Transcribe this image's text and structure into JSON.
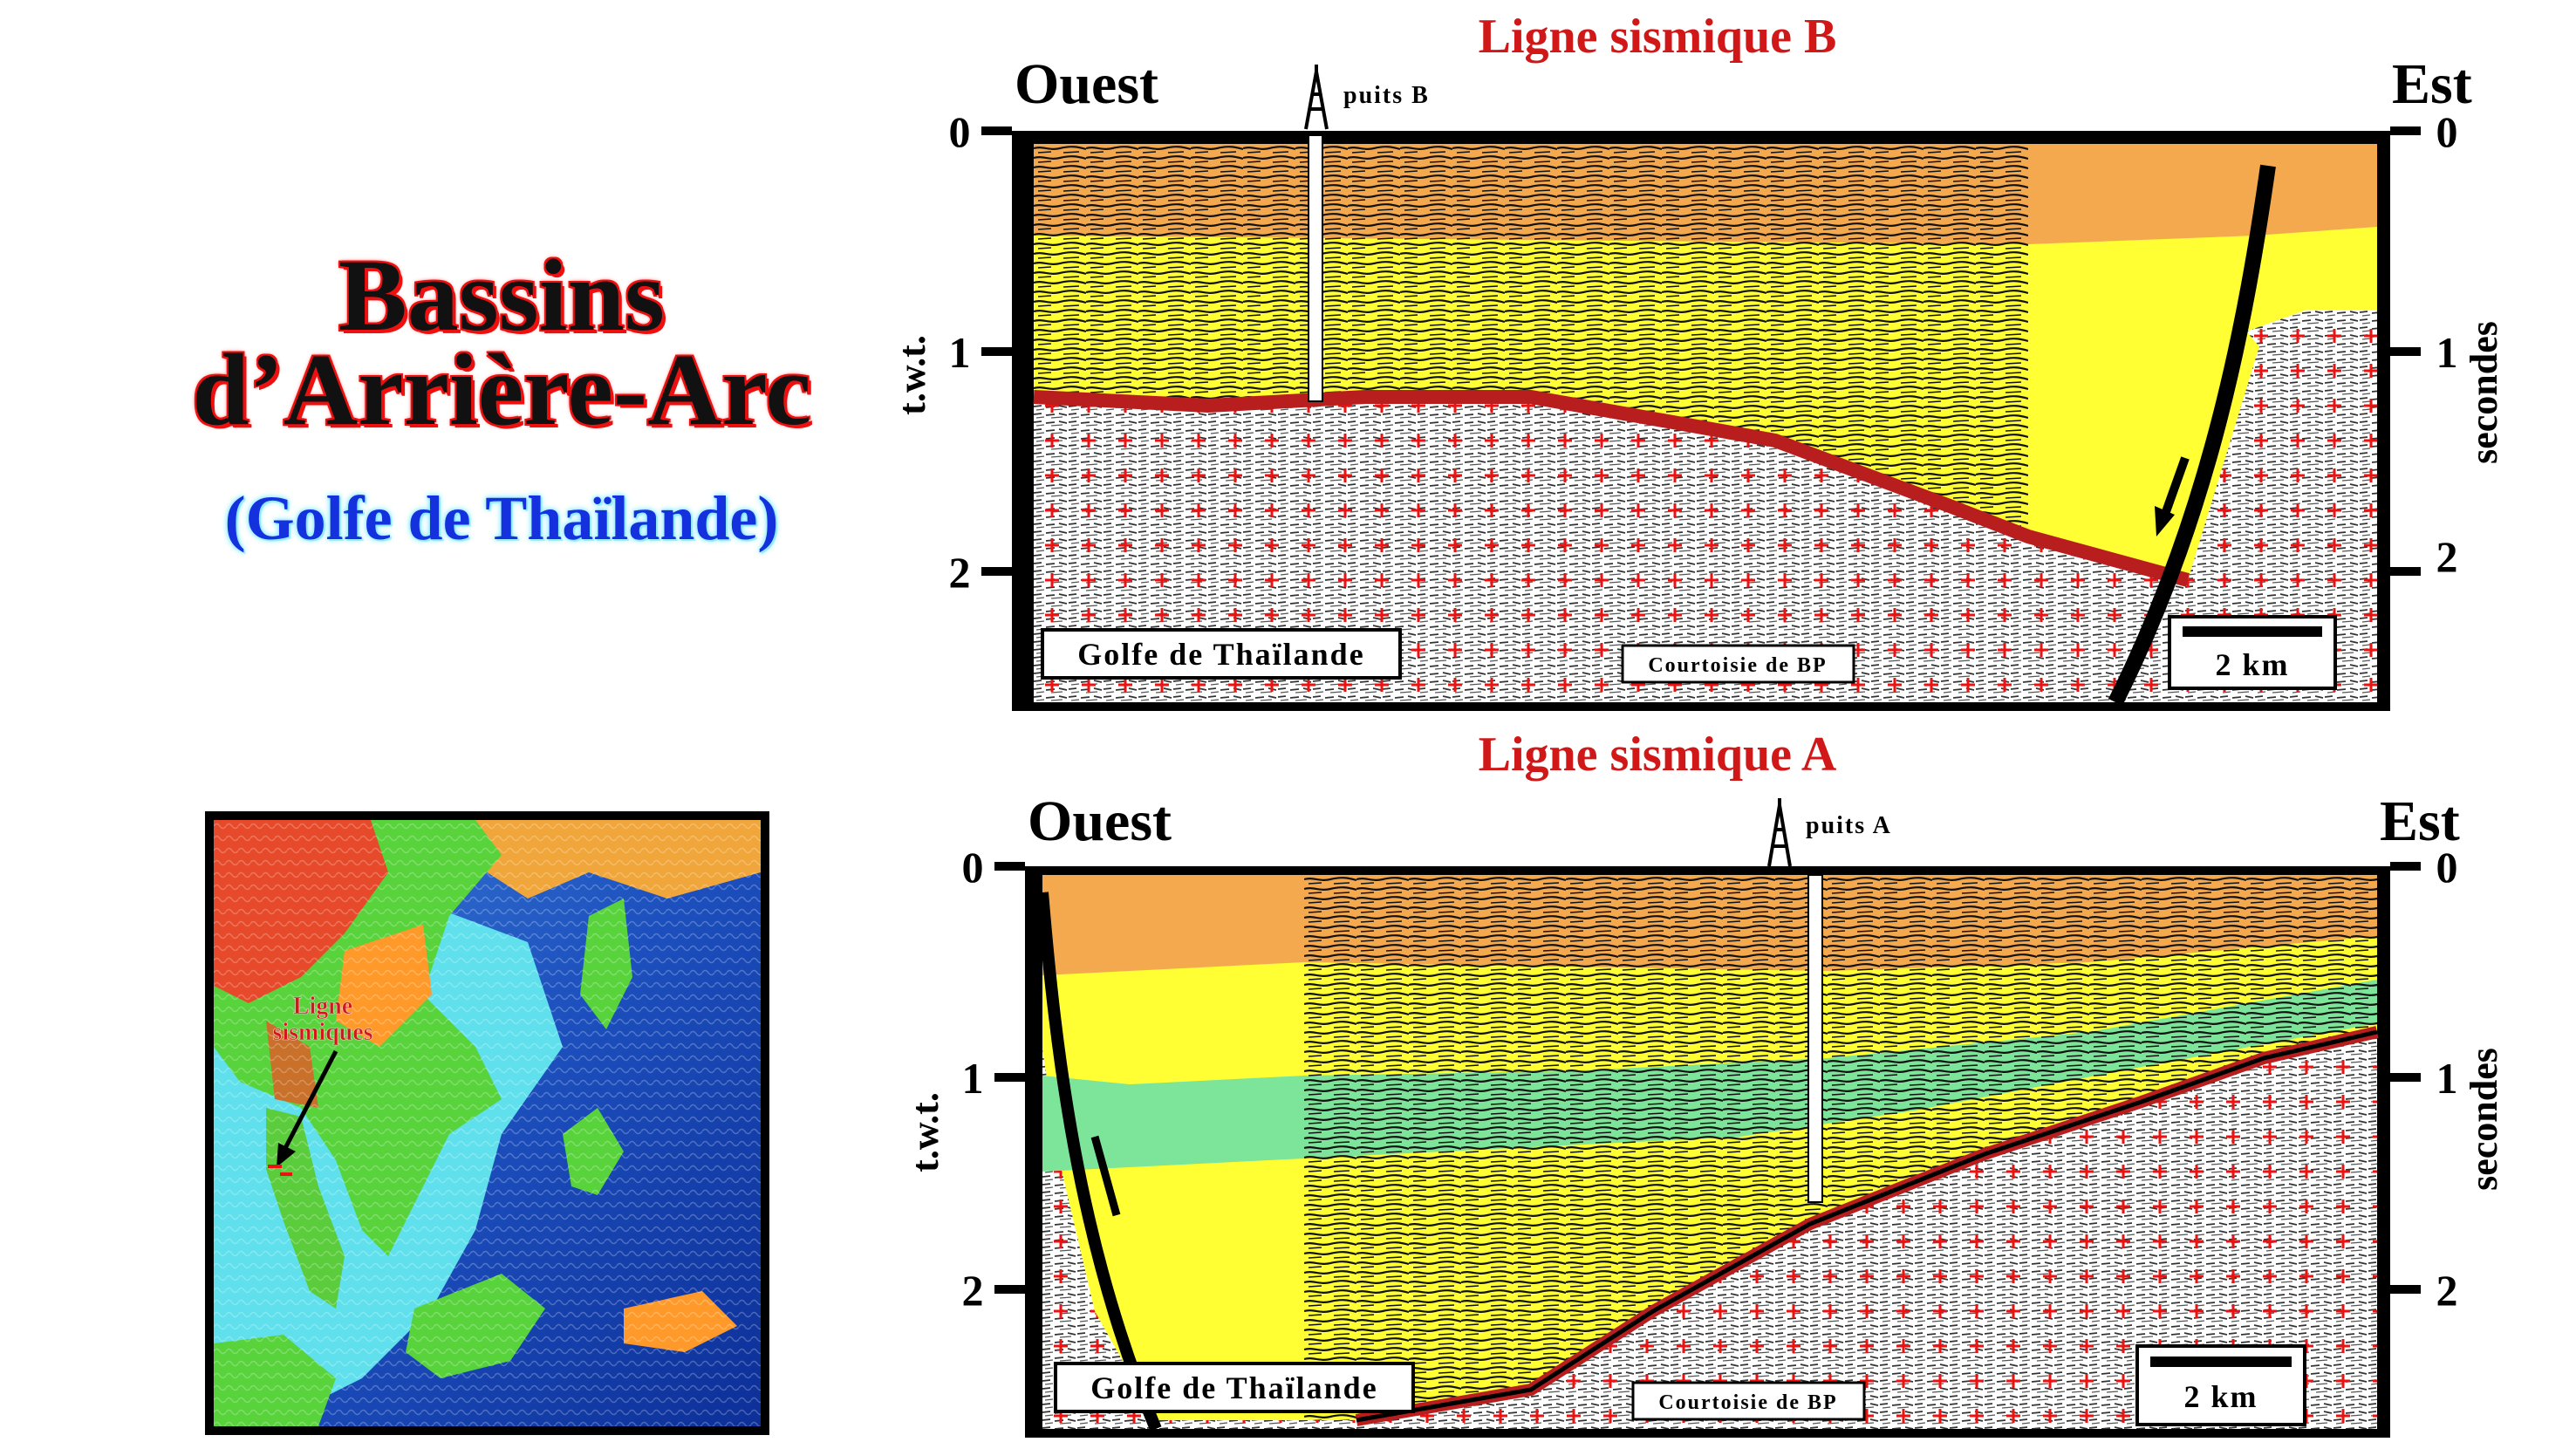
{
  "title": {
    "line1": "Bassins",
    "line2": "d’Arrière-Arc",
    "subtitle": "(Golfe de Thaïlande)"
  },
  "map": {
    "label_line1": "Ligne",
    "label_line2": "sismiques"
  },
  "colors": {
    "sediment_upper": "#f5a94e",
    "sediment_middle": "#ffff33",
    "sediment_green": "#7de59a",
    "basement_fill": "#ffffff",
    "basement_crosses": "#ee1111",
    "unconformity": "#b81e1e",
    "title_red": "#d01818",
    "subtitle_blue": "#1530dd"
  },
  "sections": [
    {
      "id": "B",
      "title": "Ligne sismique B",
      "west_label": "Ouest",
      "east_label": "Est",
      "well_label": "puits B",
      "left_axis_label": "t.w.t.",
      "right_axis_label": "secondes",
      "ticks": [
        "0",
        "1",
        "2"
      ],
      "location_tag": "Golfe de Thaïlande",
      "credit": "Courtoisie de BP",
      "scale": "2 km"
    },
    {
      "id": "A",
      "title": "Ligne sismique A",
      "west_label": "Ouest",
      "east_label": "Est",
      "well_label": "puits A",
      "left_axis_label": "t.w.t.",
      "right_axis_label": "secondes",
      "ticks": [
        "0",
        "1",
        "2"
      ],
      "location_tag": "Golfe de Thaïlande",
      "credit": "Courtoisie de BP",
      "scale": "2 km"
    }
  ]
}
